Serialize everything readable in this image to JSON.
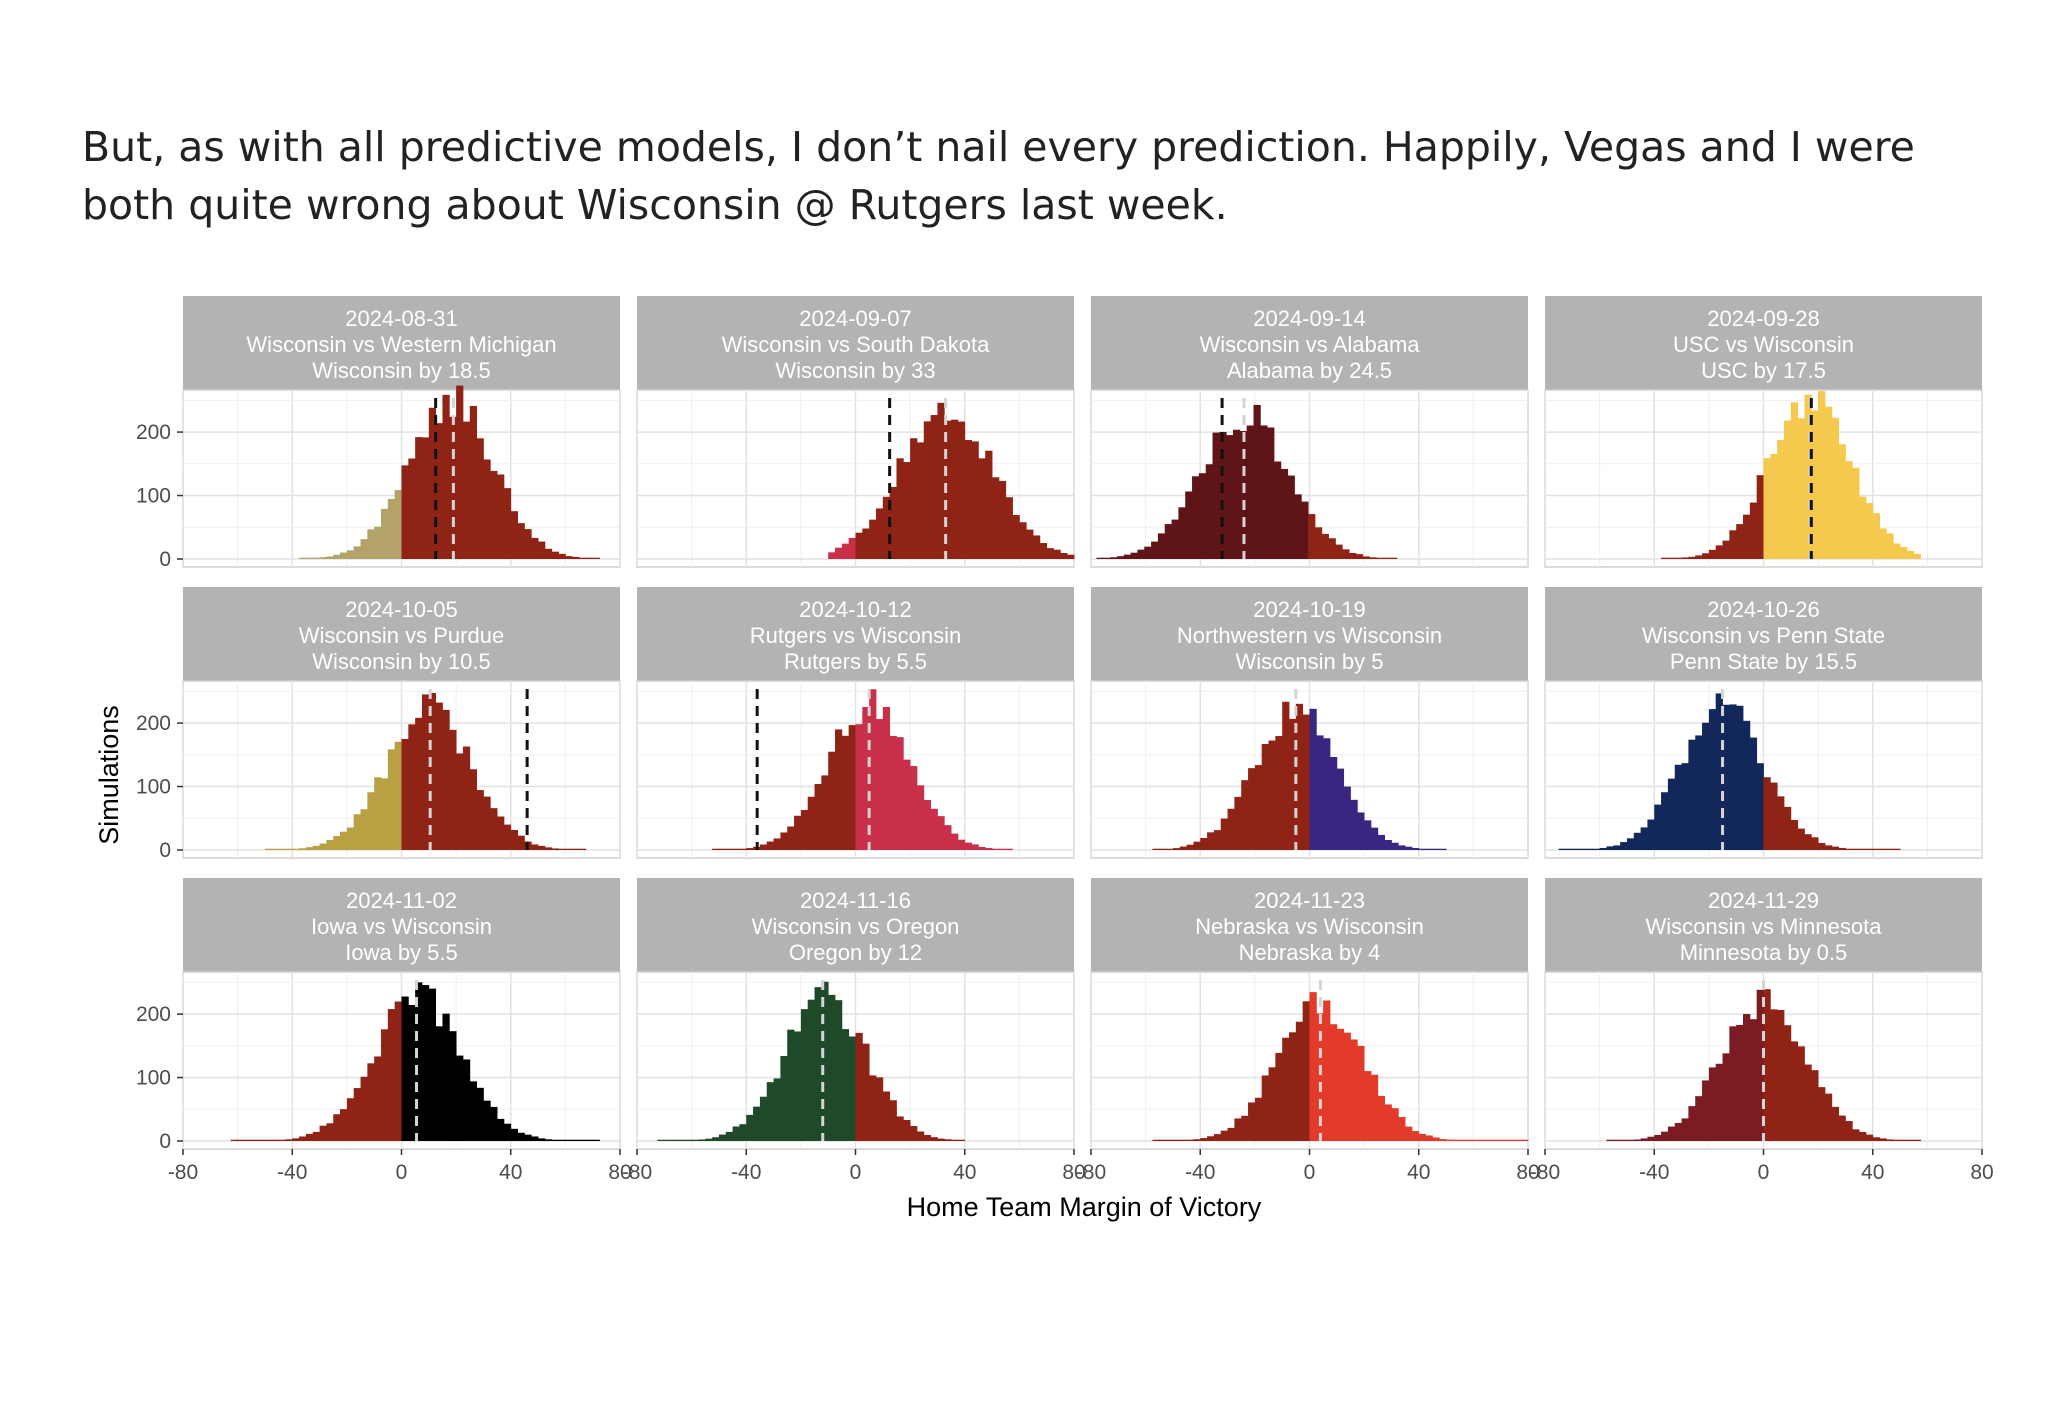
{
  "intro_text": "But, as with all predictive models, I don’t nail every prediction. Happily, Vegas and I were both quite wrong about Wisconsin @ Rutgers last week.",
  "chart_data": {
    "type": "histogram",
    "layout": "facet grid, 3 rows x 4 columns",
    "xlabel": "Home Team Margin of Victory",
    "ylabel": "Simulations",
    "xlim": [
      -80,
      80
    ],
    "ylim": [
      0,
      260
    ],
    "x_ticks": [
      -80,
      -40,
      0,
      40,
      80
    ],
    "y_ticks": [
      0,
      100,
      200
    ],
    "bin_width": 2.5,
    "grid": true,
    "facets": [
      {
        "date": "2024-08-31",
        "matchup": "Wisconsin vs Western Michigan",
        "line": "Wisconsin by 18.5",
        "mean": 18,
        "sd": 15.5,
        "peak": 250,
        "vegas_line": 12.5,
        "pred_marker": 19,
        "color_left": "#B3A369",
        "color_right": "#8F2416",
        "range": [
          -37.5,
          72.5
        ]
      },
      {
        "date": "2024-09-07",
        "matchup": "Wisconsin vs South Dakota",
        "line": "Wisconsin by 33",
        "mean": 33,
        "sd": 17,
        "peak": 235,
        "vegas_line": 12.5,
        "pred_marker": 33,
        "color_left": "#C8304A",
        "color_right": "#8F2416",
        "range": [
          -10,
          80
        ]
      },
      {
        "date": "2024-09-14",
        "matchup": "Wisconsin vs Alabama",
        "line": "Alabama by 24.5",
        "mean": -24,
        "sd": 16,
        "peak": 228,
        "vegas_line": -32,
        "pred_marker": -24,
        "color_left": "#5F1417",
        "color_right": "#8F2416",
        "range": [
          -78,
          30
        ]
      },
      {
        "date": "2024-09-28",
        "matchup": "USC vs Wisconsin",
        "line": "USC by 17.5",
        "mean": 17,
        "sd": 15,
        "peak": 248,
        "vegas_line": 17.5,
        "pred_marker": 17,
        "color_left": "#8F2416",
        "color_right": "#F4C94E",
        "range": [
          -37.5,
          57.5
        ]
      },
      {
        "date": "2024-10-05",
        "matchup": "Wisconsin vs Purdue",
        "line": "Wisconsin by 10.5",
        "mean": 10,
        "sd": 15.5,
        "peak": 222,
        "vegas_line": 46,
        "pred_marker": 10.5,
        "color_left": "#B9A043",
        "color_right": "#8F2416",
        "range": [
          -50,
          67.5
        ]
      },
      {
        "date": "2024-10-12",
        "matchup": "Rutgers vs Wisconsin",
        "line": "Rutgers by 5.5",
        "mean": 5,
        "sd": 15,
        "peak": 230,
        "vegas_line": -36,
        "pred_marker": 5,
        "color_left": "#8F2416",
        "color_right": "#C8304A",
        "range": [
          -52.5,
          57.5
        ]
      },
      {
        "date": "2024-10-19",
        "matchup": "Northwestern vs Wisconsin",
        "line": "Wisconsin by 5",
        "mean": -5,
        "sd": 15,
        "peak": 220,
        "vegas_line": null,
        "pred_marker": -5,
        "color_left": "#8F2416",
        "color_right": "#3A2681",
        "range": [
          -57.5,
          50
        ]
      },
      {
        "date": "2024-10-26",
        "matchup": "Wisconsin vs Penn State",
        "line": "Penn State by 15.5",
        "mean": -15,
        "sd": 15,
        "peak": 225,
        "vegas_line": null,
        "pred_marker": -15,
        "color_left": "#13285A",
        "color_right": "#8F2416",
        "range": [
          -75,
          50
        ]
      },
      {
        "date": "2024-11-02",
        "matchup": "Iowa vs Wisconsin",
        "line": "Iowa by 5.5",
        "mean": 6,
        "sd": 16,
        "peak": 228,
        "vegas_line": null,
        "pred_marker": 5.5,
        "color_left": "#8F2416",
        "color_right": "#000000",
        "range": [
          -62.5,
          72.5
        ]
      },
      {
        "date": "2024-11-16",
        "matchup": "Wisconsin vs Oregon",
        "line": "Oregon by 12",
        "mean": -11,
        "sd": 15,
        "peak": 225,
        "vegas_line": null,
        "pred_marker": -12,
        "color_left": "#1E4A2A",
        "color_right": "#8F2416",
        "range": [
          -72.5,
          40
        ]
      },
      {
        "date": "2024-11-23",
        "matchup": "Nebraska vs Wisconsin",
        "line": "Nebraska by 4",
        "mean": 4,
        "sd": 15.5,
        "peak": 218,
        "vegas_line": null,
        "pred_marker": 4,
        "color_left": "#8F2416",
        "color_right": "#E23B2A",
        "range": [
          -57.5,
          80
        ]
      },
      {
        "date": "2024-11-29",
        "matchup": "Wisconsin vs Minnesota",
        "line": "Minnesota by 0.5",
        "mean": 0,
        "sd": 15.5,
        "peak": 220,
        "vegas_line": null,
        "pred_marker": 0,
        "color_left": "#7A1C22",
        "color_right": "#8F2416",
        "range": [
          -57.5,
          57.5
        ]
      }
    ]
  }
}
